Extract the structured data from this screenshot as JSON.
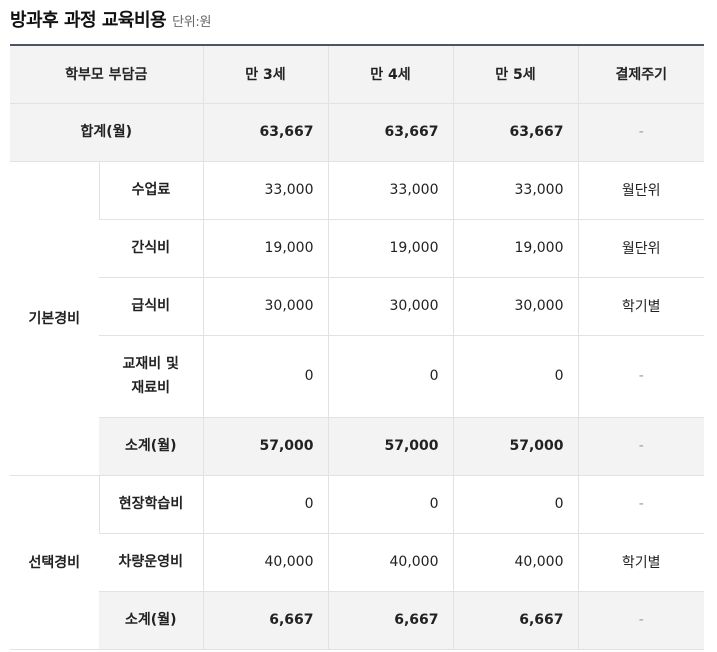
{
  "header": {
    "title": "방과후 과정 교육비용",
    "unit": "단위:원"
  },
  "table": {
    "columns": [
      "학부모 부담금",
      "만 3세",
      "만 4세",
      "만 5세",
      "결제주기"
    ],
    "total_row": {
      "label": "합계(월)",
      "values": [
        "63,667",
        "63,667",
        "63,667"
      ],
      "cycle": "-"
    },
    "basic": {
      "group_label": "기본경비",
      "rows": [
        {
          "label": "수업료",
          "values": [
            "33,000",
            "33,000",
            "33,000"
          ],
          "cycle": "월단위"
        },
        {
          "label": "간식비",
          "values": [
            "19,000",
            "19,000",
            "19,000"
          ],
          "cycle": "월단위"
        },
        {
          "label": "급식비",
          "values": [
            "30,000",
            "30,000",
            "30,000"
          ],
          "cycle": "학기별"
        },
        {
          "label_line1": "교재비 및",
          "label_line2": "재료비",
          "values": [
            "0",
            "0",
            "0"
          ],
          "cycle": "-"
        },
        {
          "label": "소계(월)",
          "values": [
            "57,000",
            "57,000",
            "57,000"
          ],
          "cycle": "-"
        }
      ]
    },
    "optional": {
      "group_label": "선택경비",
      "rows": [
        {
          "label": "현장학습비",
          "values": [
            "0",
            "0",
            "0"
          ],
          "cycle": "-"
        },
        {
          "label": "차량운영비",
          "values": [
            "40,000",
            "40,000",
            "40,000"
          ],
          "cycle": "학기별"
        },
        {
          "label": "소계(월)",
          "values": [
            "6,667",
            "6,667",
            "6,667"
          ],
          "cycle": "-"
        }
      ]
    }
  }
}
